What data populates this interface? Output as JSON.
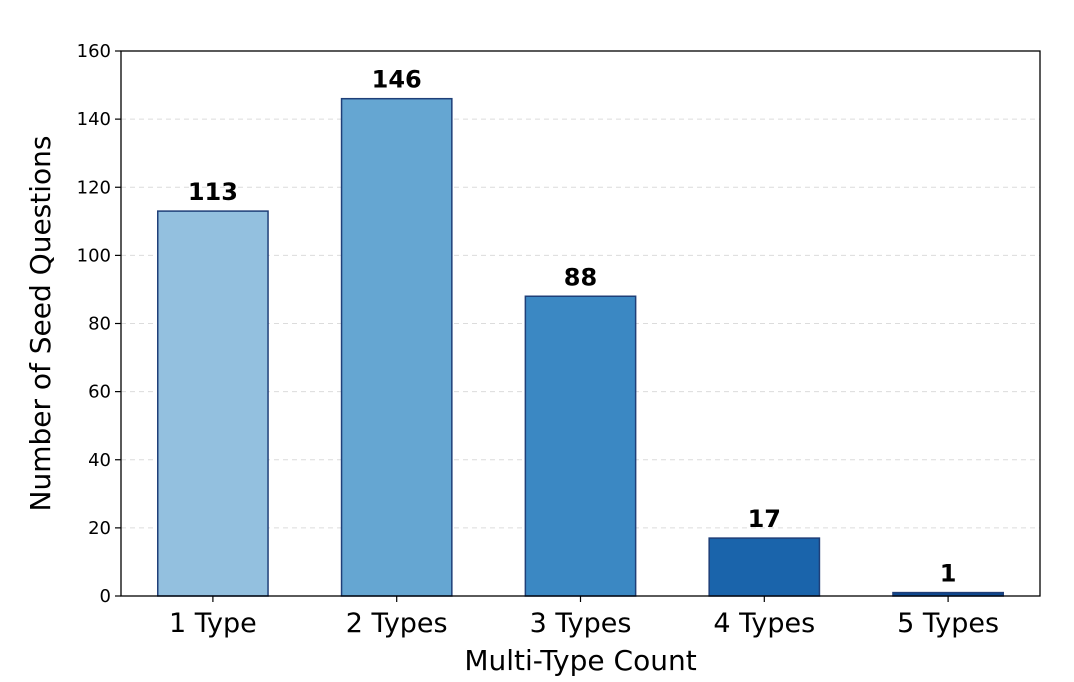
{
  "chart_data": {
    "type": "bar",
    "categories": [
      "1 Type",
      "2 Types",
      "3 Types",
      "4 Types",
      "5 Types"
    ],
    "values": [
      113,
      146,
      88,
      17,
      1
    ],
    "data_labels": [
      "113",
      "146",
      "88",
      "17",
      "1"
    ],
    "bar_colors": [
      "#93c0df",
      "#65a6d2",
      "#3b88c3",
      "#1a64ab",
      "#0d4992"
    ],
    "bar_edge_color": "#1f3f78",
    "xlabel": "Multi-Type Count",
    "ylabel": "Number of Seed Questions",
    "ylim": [
      0,
      160
    ],
    "yticks": [
      "0",
      "20",
      "40",
      "60",
      "80",
      "100",
      "120",
      "140",
      "160"
    ],
    "grid": "horizontal dashed",
    "legend": "none"
  }
}
